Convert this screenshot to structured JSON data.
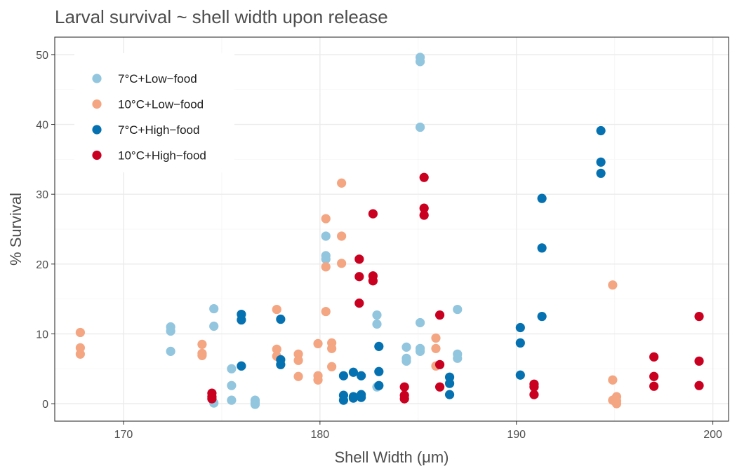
{
  "chart_data": {
    "type": "scatter",
    "title": "Larval survival ~ shell width upon release",
    "xlabel": "Shell Width (μm)",
    "ylabel": "% Survival",
    "xlim": [
      166.5,
      200.8
    ],
    "ylim": [
      -2.5,
      52.5
    ],
    "xticks": [
      170,
      180,
      190,
      200
    ],
    "yticks": [
      0,
      10,
      20,
      30,
      40,
      50
    ],
    "grid": true,
    "legend_position": "top-left",
    "series": [
      {
        "name": "7°C+Low−food",
        "color": "#92c5de",
        "points": [
          [
            172.4,
            11.0
          ],
          [
            172.4,
            10.4
          ],
          [
            172.4,
            7.5
          ],
          [
            174.6,
            13.6
          ],
          [
            174.6,
            11.1
          ],
          [
            174.6,
            0.1
          ],
          [
            175.5,
            5.0
          ],
          [
            175.5,
            2.6
          ],
          [
            175.5,
            0.5
          ],
          [
            176.7,
            0.5
          ],
          [
            176.7,
            0.2
          ],
          [
            176.7,
            -0.1
          ],
          [
            180.3,
            24.0
          ],
          [
            180.3,
            21.2
          ],
          [
            180.3,
            20.7
          ],
          [
            182.9,
            12.7
          ],
          [
            182.9,
            11.4
          ],
          [
            182.9,
            2.4
          ],
          [
            184.4,
            8.1
          ],
          [
            184.4,
            6.5
          ],
          [
            184.4,
            6.1
          ],
          [
            185.1,
            49.6
          ],
          [
            185.1,
            49.0
          ],
          [
            185.1,
            39.6
          ],
          [
            185.1,
            11.6
          ],
          [
            185.1,
            7.9
          ],
          [
            185.1,
            7.5
          ],
          [
            187.0,
            13.5
          ],
          [
            187.0,
            7.1
          ],
          [
            187.0,
            6.5
          ]
        ]
      },
      {
        "name": "10°C+Low−food",
        "color": "#f4a582",
        "points": [
          [
            167.8,
            10.2
          ],
          [
            167.8,
            8.0
          ],
          [
            167.8,
            7.1
          ],
          [
            174.0,
            8.5
          ],
          [
            174.0,
            7.2
          ],
          [
            174.0,
            6.9
          ],
          [
            177.8,
            13.5
          ],
          [
            177.8,
            7.8
          ],
          [
            177.8,
            6.8
          ],
          [
            178.9,
            7.1
          ],
          [
            178.9,
            6.2
          ],
          [
            178.9,
            3.9
          ],
          [
            179.9,
            8.6
          ],
          [
            179.9,
            4.0
          ],
          [
            179.9,
            3.4
          ],
          [
            180.3,
            26.5
          ],
          [
            180.3,
            19.6
          ],
          [
            180.3,
            13.2
          ],
          [
            180.6,
            8.7
          ],
          [
            180.6,
            7.9
          ],
          [
            180.6,
            5.3
          ],
          [
            181.1,
            31.6
          ],
          [
            181.1,
            24.0
          ],
          [
            181.1,
            20.1
          ],
          [
            185.9,
            9.4
          ],
          [
            185.9,
            7.9
          ],
          [
            185.9,
            5.4
          ],
          [
            194.9,
            17.0
          ],
          [
            194.9,
            3.4
          ],
          [
            194.9,
            0.5
          ],
          [
            195.1,
            1.0
          ],
          [
            195.1,
            0.4
          ],
          [
            195.1,
            0.0
          ]
        ]
      },
      {
        "name": "7°C+High−food",
        "color": "#0571b0",
        "points": [
          [
            176.0,
            12.8
          ],
          [
            176.0,
            12.0
          ],
          [
            176.0,
            5.4
          ],
          [
            178.0,
            12.1
          ],
          [
            178.0,
            6.3
          ],
          [
            178.0,
            5.6
          ],
          [
            181.2,
            4.0
          ],
          [
            181.2,
            1.2
          ],
          [
            181.2,
            0.5
          ],
          [
            181.7,
            4.5
          ],
          [
            181.7,
            1.0
          ],
          [
            181.7,
            0.8
          ],
          [
            182.1,
            4.0
          ],
          [
            182.1,
            1.3
          ],
          [
            182.1,
            0.9
          ],
          [
            183.0,
            8.2
          ],
          [
            183.0,
            4.6
          ],
          [
            183.0,
            2.6
          ],
          [
            186.6,
            3.8
          ],
          [
            186.6,
            2.9
          ],
          [
            186.6,
            1.3
          ],
          [
            190.2,
            10.9
          ],
          [
            190.2,
            8.7
          ],
          [
            190.2,
            4.1
          ],
          [
            191.3,
            29.4
          ],
          [
            191.3,
            22.3
          ],
          [
            191.3,
            12.5
          ],
          [
            194.3,
            39.1
          ],
          [
            194.3,
            34.6
          ],
          [
            194.3,
            33.0
          ]
        ]
      },
      {
        "name": "10°C+High−food",
        "color": "#ca0020",
        "points": [
          [
            174.5,
            1.5
          ],
          [
            174.5,
            1.0
          ],
          [
            174.5,
            0.7
          ],
          [
            182.0,
            20.7
          ],
          [
            182.0,
            18.2
          ],
          [
            182.0,
            14.4
          ],
          [
            182.7,
            27.2
          ],
          [
            182.7,
            18.3
          ],
          [
            182.7,
            17.6
          ],
          [
            184.3,
            2.4
          ],
          [
            184.3,
            1.2
          ],
          [
            184.3,
            0.7
          ],
          [
            185.3,
            32.4
          ],
          [
            185.3,
            28.0
          ],
          [
            185.3,
            27.0
          ],
          [
            186.1,
            12.7
          ],
          [
            186.1,
            5.6
          ],
          [
            186.1,
            2.4
          ],
          [
            190.9,
            2.8
          ],
          [
            190.9,
            2.4
          ],
          [
            190.9,
            1.3
          ],
          [
            197.0,
            6.7
          ],
          [
            197.0,
            3.9
          ],
          [
            197.0,
            2.5
          ],
          [
            199.3,
            12.5
          ],
          [
            199.3,
            6.1
          ],
          [
            199.3,
            2.6
          ]
        ]
      }
    ]
  }
}
